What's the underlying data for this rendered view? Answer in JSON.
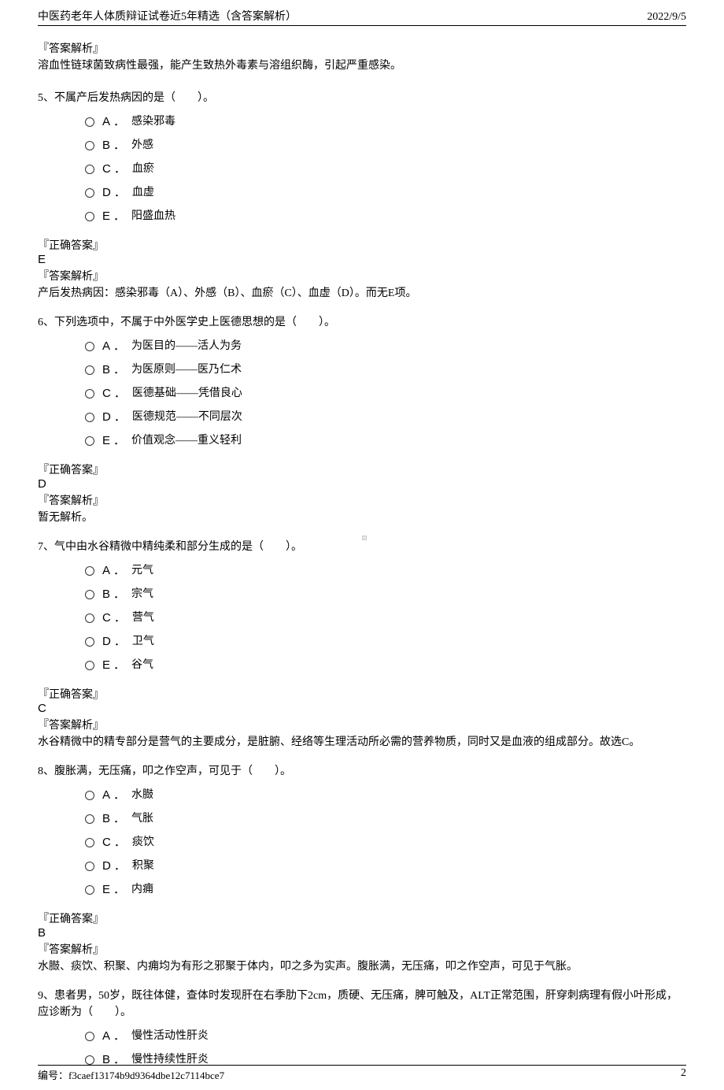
{
  "header": {
    "title": "中医药老年人体质辩证试卷近5年精选（含答案解析）",
    "date": "2022/9/5"
  },
  "blocks": {
    "intro_analysis": {
      "label": "『答案解析』",
      "text": "溶血性链球菌致病性最强，能产生致热外毒素与溶组织酶，引起严重感染。"
    }
  },
  "questions": {
    "q5": {
      "stem": "5、不属产后发热病因的是（　　）。",
      "options": {
        "A": "感染邪毒",
        "B": "外感",
        "C": "血瘀",
        "D": "血虚",
        "E": "阳盛血热"
      },
      "answer_label": "『正确答案』",
      "answer": "E",
      "analysis_label": "『答案解析』",
      "analysis": "产后发热病因：感染邪毒（A）、外感（B）、血瘀（C）、血虚（D）。而无E项。"
    },
    "q6": {
      "stem": "6、下列选项中，不属于中外医学史上医德思想的是（　　）。",
      "options": {
        "A": "为医目的——活人为务",
        "B": "为医原则——医乃仁术",
        "C": "医德基础——凭借良心",
        "D": "医德规范——不同层次",
        "E": "价值观念——重义轻利"
      },
      "answer_label": "『正确答案』",
      "answer": "D",
      "analysis_label": "『答案解析』",
      "analysis": "暂无解析。"
    },
    "q7": {
      "stem": "7、气中由水谷精微中精纯柔和部分生成的是（　　）。",
      "options": {
        "A": "元气",
        "B": "宗气",
        "C": "营气",
        "D": "卫气",
        "E": "谷气"
      },
      "answer_label": "『正确答案』",
      "answer": "C",
      "analysis_label": "『答案解析』",
      "analysis": "水谷精微中的精专部分是营气的主要成分，是脏腑、经络等生理活动所必需的营养物质，同时又是血液的组成部分。故选C。"
    },
    "q8": {
      "stem": "8、腹胀满，无压痛，叩之作空声，可见于（　　）。",
      "options": {
        "A": "水臌",
        "B": "气胀",
        "C": "痰饮",
        "D": "积聚",
        "E": "内痈"
      },
      "answer_label": "『正确答案』",
      "answer": "B",
      "analysis_label": "『答案解析』",
      "analysis": "水臌、痰饮、积聚、内痈均为有形之邪聚于体内，叩之多为实声。腹胀满，无压痛，叩之作空声，可见于气胀。"
    },
    "q9": {
      "stem": "9、患者男，50岁，既往体健，查体时发现肝在右季肋下2cm，质硬、无压痛，脾可触及，ALT正常范围，肝穿刺病理有假小叶形成，应诊断为（　　）。",
      "options": {
        "A": "慢性活动性肝炎",
        "B": "慢性持续性肝炎"
      }
    }
  },
  "footer": {
    "id_label": "编号：",
    "id": "f3caef13174b9d9364dbe12c7114bce7",
    "page": "2"
  },
  "styles": {
    "text_color": "#000000",
    "background_color": "#ffffff",
    "border_color": "#000000"
  }
}
